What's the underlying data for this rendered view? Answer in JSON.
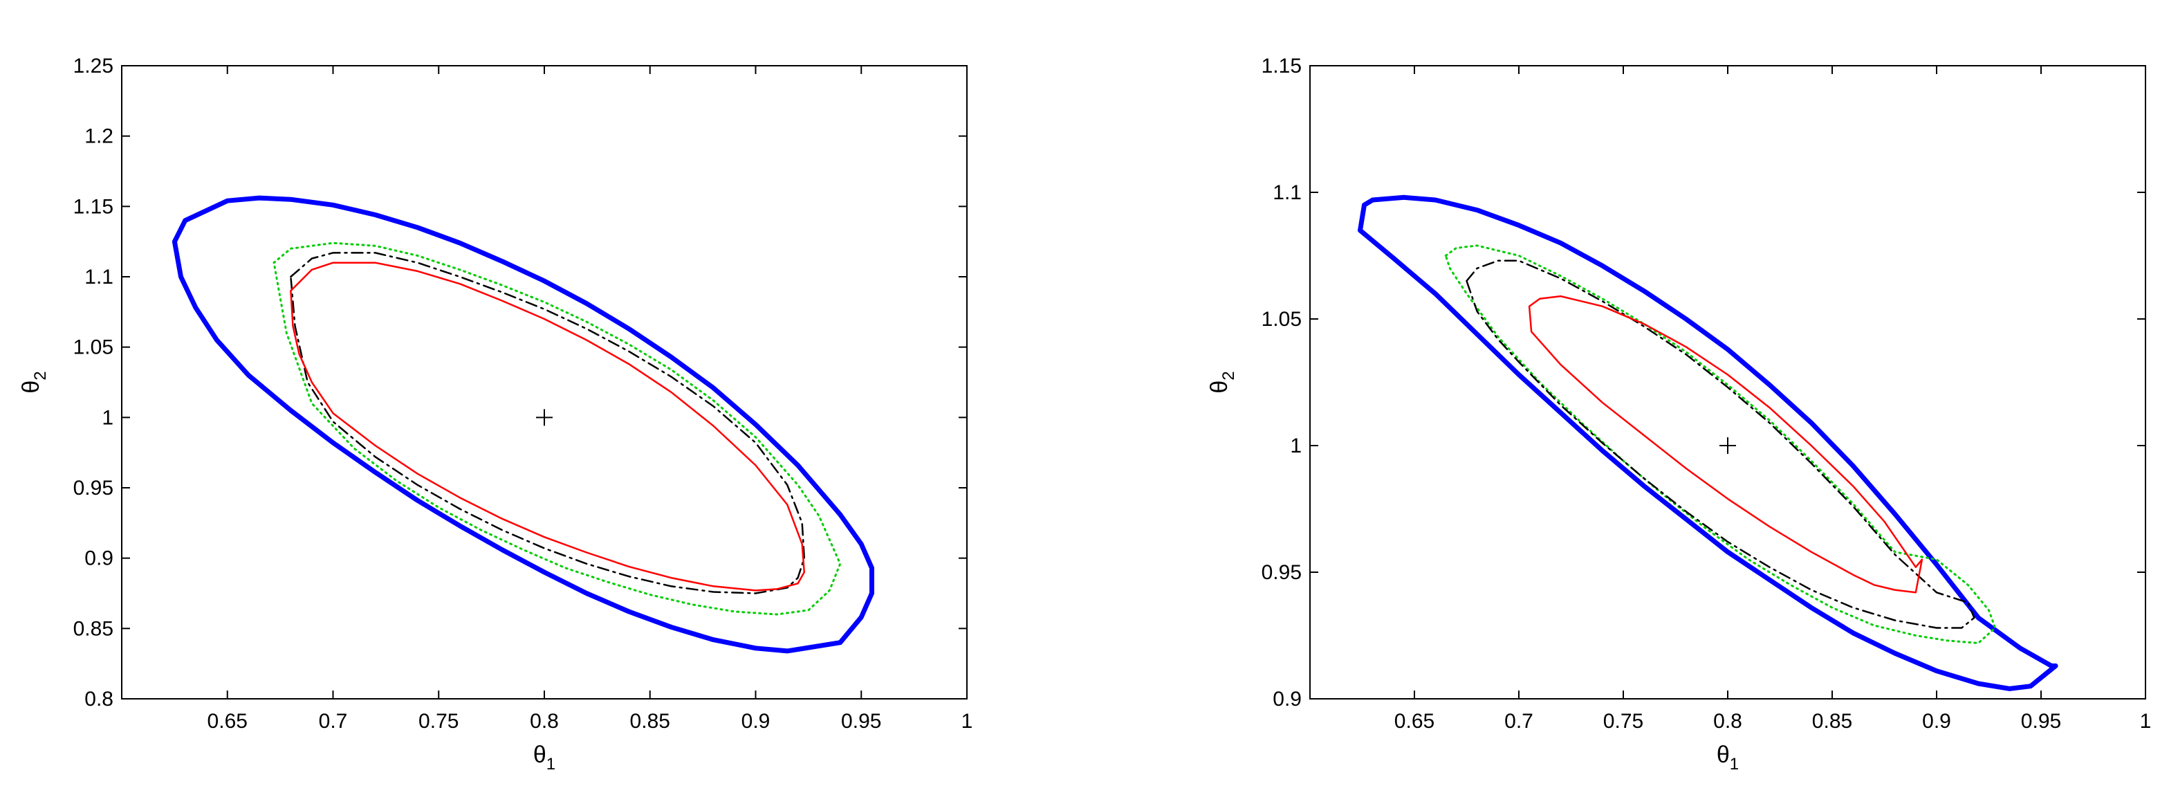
{
  "chart_data": [
    {
      "type": "line",
      "xlabel": "θ",
      "xlabel_sub": "1",
      "ylabel": "θ",
      "ylabel_sub": "2",
      "xlim": [
        0.6,
        1.0
      ],
      "ylim": [
        0.8,
        1.25
      ],
      "xticks": [
        0.65,
        0.7,
        0.75,
        0.8,
        0.85,
        0.9,
        0.95,
        1
      ],
      "xtick_labels": [
        "0.65",
        "0.7",
        "0.75",
        "0.8",
        "0.85",
        "0.9",
        "0.95",
        "1"
      ],
      "yticks": [
        0.8,
        0.85,
        0.9,
        0.95,
        1,
        1.05,
        1.1,
        1.15,
        1.2,
        1.25
      ],
      "ytick_labels": [
        "0.8",
        "0.85",
        "0.9",
        "0.95",
        "1",
        "1.05",
        "1.1",
        "1.15",
        "1.2",
        "1.25"
      ],
      "marker": {
        "x": 0.8,
        "y": 1.0,
        "symbol": "+"
      },
      "series": [
        {
          "color": "#0000ff",
          "style": "thick-solid",
          "x": [
            0.625,
            0.63,
            0.65,
            0.665,
            0.68,
            0.7,
            0.72,
            0.74,
            0.76,
            0.78,
            0.8,
            0.82,
            0.84,
            0.86,
            0.88,
            0.9,
            0.92,
            0.94,
            0.95,
            0.955,
            0.955,
            0.95,
            0.94,
            0.915,
            0.9,
            0.88,
            0.86,
            0.84,
            0.82,
            0.8,
            0.78,
            0.76,
            0.74,
            0.72,
            0.7,
            0.68,
            0.66,
            0.645,
            0.635,
            0.628,
            0.625
          ],
          "y": [
            1.125,
            1.14,
            1.154,
            1.156,
            1.155,
            1.151,
            1.144,
            1.135,
            1.124,
            1.111,
            1.097,
            1.081,
            1.063,
            1.043,
            1.021,
            0.995,
            0.966,
            0.931,
            0.91,
            0.893,
            0.875,
            0.858,
            0.84,
            0.834,
            0.836,
            0.842,
            0.851,
            0.862,
            0.875,
            0.89,
            0.906,
            0.923,
            0.941,
            0.961,
            0.982,
            1.005,
            1.03,
            1.055,
            1.078,
            1.1,
            1.125
          ]
        },
        {
          "color": "#00cc00",
          "style": "dotted",
          "x": [
            0.672,
            0.68,
            0.7,
            0.72,
            0.74,
            0.76,
            0.78,
            0.8,
            0.82,
            0.84,
            0.86,
            0.88,
            0.9,
            0.92,
            0.93,
            0.94,
            0.935,
            0.925,
            0.91,
            0.89,
            0.87,
            0.85,
            0.83,
            0.81,
            0.79,
            0.77,
            0.75,
            0.73,
            0.71,
            0.69,
            0.678,
            0.672
          ],
          "y": [
            1.11,
            1.12,
            1.124,
            1.122,
            1.115,
            1.105,
            1.094,
            1.082,
            1.068,
            1.052,
            1.034,
            1.012,
            0.986,
            0.952,
            0.93,
            0.896,
            0.877,
            0.863,
            0.86,
            0.862,
            0.867,
            0.874,
            0.883,
            0.893,
            0.906,
            0.92,
            0.936,
            0.955,
            0.978,
            1.01,
            1.06,
            1.11
          ]
        },
        {
          "color": "#000000",
          "style": "dashdot",
          "x": [
            0.68,
            0.69,
            0.7,
            0.72,
            0.74,
            0.76,
            0.78,
            0.8,
            0.82,
            0.84,
            0.86,
            0.88,
            0.9,
            0.915,
            0.922,
            0.923,
            0.92,
            0.915,
            0.9,
            0.88,
            0.86,
            0.84,
            0.82,
            0.8,
            0.78,
            0.76,
            0.74,
            0.72,
            0.7,
            0.688,
            0.682,
            0.68
          ],
          "y": [
            1.1,
            1.113,
            1.117,
            1.117,
            1.11,
            1.1,
            1.089,
            1.077,
            1.063,
            1.047,
            1.029,
            1.008,
            0.982,
            0.952,
            0.925,
            0.9,
            0.886,
            0.879,
            0.875,
            0.876,
            0.88,
            0.887,
            0.896,
            0.907,
            0.92,
            0.935,
            0.952,
            0.972,
            0.997,
            1.025,
            1.065,
            1.1
          ]
        },
        {
          "color": "#ff0000",
          "style": "solid",
          "x": [
            0.68,
            0.69,
            0.7,
            0.72,
            0.74,
            0.76,
            0.78,
            0.8,
            0.82,
            0.84,
            0.86,
            0.88,
            0.9,
            0.915,
            0.922,
            0.923,
            0.92,
            0.91,
            0.9,
            0.88,
            0.86,
            0.84,
            0.82,
            0.8,
            0.78,
            0.76,
            0.74,
            0.72,
            0.7,
            0.69,
            0.684,
            0.681,
            0.68
          ],
          "y": [
            1.09,
            1.105,
            1.11,
            1.11,
            1.104,
            1.095,
            1.083,
            1.07,
            1.055,
            1.038,
            1.018,
            0.994,
            0.966,
            0.938,
            0.91,
            0.89,
            0.882,
            0.878,
            0.877,
            0.88,
            0.886,
            0.894,
            0.904,
            0.915,
            0.928,
            0.943,
            0.96,
            0.98,
            1.003,
            1.025,
            1.045,
            1.065,
            1.09
          ]
        }
      ]
    },
    {
      "type": "line",
      "xlabel": "θ",
      "xlabel_sub": "1",
      "ylabel": "θ",
      "ylabel_sub": "2",
      "xlim": [
        0.6,
        1.0
      ],
      "ylim": [
        0.9,
        1.15
      ],
      "xticks": [
        0.65,
        0.7,
        0.75,
        0.8,
        0.85,
        0.9,
        0.95,
        1
      ],
      "xtick_labels": [
        "0.65",
        "0.7",
        "0.75",
        "0.8",
        "0.85",
        "0.9",
        "0.95",
        "1"
      ],
      "yticks": [
        0.9,
        0.95,
        1,
        1.05,
        1.1,
        1.15
      ],
      "ytick_labels": [
        "0.9",
        "0.95",
        "1",
        "1.05",
        "1.1",
        "1.15"
      ],
      "marker": {
        "x": 0.8,
        "y": 1.0,
        "symbol": "+"
      },
      "series": [
        {
          "color": "#0000ff",
          "style": "thick-solid",
          "x": [
            0.624,
            0.626,
            0.63,
            0.645,
            0.66,
            0.68,
            0.7,
            0.72,
            0.74,
            0.76,
            0.78,
            0.8,
            0.82,
            0.84,
            0.86,
            0.88,
            0.9,
            0.92,
            0.94,
            0.955,
            0.957,
            0.945,
            0.935,
            0.92,
            0.9,
            0.88,
            0.86,
            0.84,
            0.82,
            0.8,
            0.78,
            0.76,
            0.74,
            0.72,
            0.7,
            0.68,
            0.66,
            0.64,
            0.624
          ],
          "y": [
            1.085,
            1.095,
            1.097,
            1.098,
            1.097,
            1.093,
            1.087,
            1.08,
            1.071,
            1.061,
            1.05,
            1.038,
            1.024,
            1.009,
            0.992,
            0.973,
            0.953,
            0.932,
            0.92,
            0.913,
            0.913,
            0.905,
            0.904,
            0.906,
            0.911,
            0.918,
            0.926,
            0.936,
            0.947,
            0.958,
            0.971,
            0.984,
            0.998,
            1.013,
            1.028,
            1.044,
            1.06,
            1.074,
            1.085
          ]
        },
        {
          "color": "#00cc00",
          "style": "dotted",
          "x": [
            0.665,
            0.67,
            0.68,
            0.7,
            0.72,
            0.74,
            0.76,
            0.78,
            0.8,
            0.82,
            0.84,
            0.86,
            0.88,
            0.9,
            0.915,
            0.925,
            0.928,
            0.92,
            0.905,
            0.89,
            0.87,
            0.85,
            0.83,
            0.81,
            0.79,
            0.77,
            0.75,
            0.73,
            0.71,
            0.69,
            0.675,
            0.667,
            0.665
          ],
          "y": [
            1.075,
            1.078,
            1.079,
            1.075,
            1.067,
            1.058,
            1.048,
            1.037,
            1.024,
            1.01,
            0.994,
            0.977,
            0.958,
            0.955,
            0.945,
            0.935,
            0.928,
            0.922,
            0.923,
            0.925,
            0.929,
            0.936,
            0.945,
            0.955,
            0.967,
            0.98,
            0.994,
            1.009,
            1.025,
            1.043,
            1.06,
            1.07,
            1.075
          ]
        },
        {
          "color": "#000000",
          "style": "dashdot",
          "x": [
            0.675,
            0.68,
            0.69,
            0.7,
            0.72,
            0.74,
            0.76,
            0.78,
            0.8,
            0.82,
            0.84,
            0.86,
            0.88,
            0.9,
            0.915,
            0.918,
            0.912,
            0.9,
            0.88,
            0.86,
            0.84,
            0.82,
            0.8,
            0.78,
            0.76,
            0.74,
            0.72,
            0.7,
            0.69,
            0.68,
            0.675
          ],
          "y": [
            1.065,
            1.07,
            1.073,
            1.073,
            1.066,
            1.057,
            1.047,
            1.036,
            1.023,
            1.009,
            0.993,
            0.976,
            0.957,
            0.942,
            0.938,
            0.932,
            0.928,
            0.928,
            0.931,
            0.936,
            0.943,
            0.952,
            0.962,
            0.974,
            0.987,
            1.001,
            1.016,
            1.033,
            1.042,
            1.053,
            1.065
          ]
        },
        {
          "color": "#ff0000",
          "style": "solid",
          "x": [
            0.705,
            0.71,
            0.72,
            0.74,
            0.76,
            0.78,
            0.8,
            0.82,
            0.84,
            0.86,
            0.875,
            0.885,
            0.89,
            0.893,
            0.89,
            0.88,
            0.87,
            0.86,
            0.84,
            0.82,
            0.8,
            0.78,
            0.76,
            0.74,
            0.72,
            0.706,
            0.705
          ],
          "y": [
            1.055,
            1.058,
            1.059,
            1.055,
            1.048,
            1.039,
            1.028,
            1.015,
            1.0,
            0.984,
            0.97,
            0.958,
            0.952,
            0.955,
            0.942,
            0.943,
            0.945,
            0.949,
            0.958,
            0.968,
            0.979,
            0.991,
            1.004,
            1.017,
            1.032,
            1.045,
            1.055
          ]
        }
      ]
    }
  ]
}
